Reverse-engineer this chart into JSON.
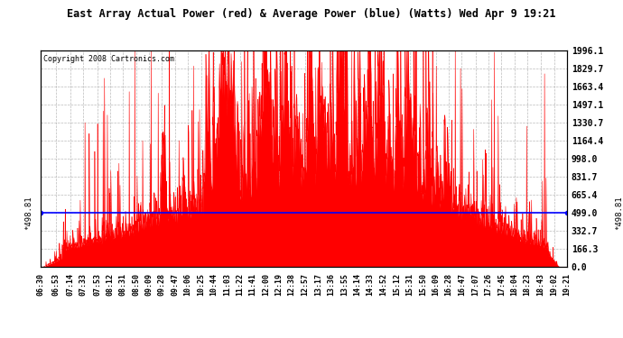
{
  "title": "East Array Actual Power (red) & Average Power (blue) (Watts) Wed Apr 9 19:21",
  "copyright": "Copyright 2008 Cartronics.com",
  "avg_power": 498.81,
  "ymax": 1996.1,
  "yticks": [
    0.0,
    166.3,
    332.7,
    499.0,
    665.4,
    831.7,
    998.0,
    1164.4,
    1330.7,
    1497.1,
    1663.4,
    1829.7,
    1996.1
  ],
  "bg_color": "#ffffff",
  "plot_bg_color": "#ffffff",
  "grid_color": "#aaaaaa",
  "red_color": "#ff0000",
  "blue_color": "#0000ff",
  "title_bg": "#cccccc",
  "xtick_labels": [
    "06:30",
    "06:53",
    "07:14",
    "07:33",
    "07:53",
    "08:12",
    "08:31",
    "08:50",
    "09:09",
    "09:28",
    "09:47",
    "10:06",
    "10:25",
    "10:44",
    "11:03",
    "11:22",
    "11:41",
    "12:00",
    "12:19",
    "12:38",
    "12:57",
    "13:17",
    "13:36",
    "13:55",
    "14:14",
    "14:33",
    "14:52",
    "15:12",
    "15:31",
    "15:50",
    "16:09",
    "16:28",
    "16:47",
    "17:07",
    "17:26",
    "17:45",
    "18:04",
    "18:23",
    "18:43",
    "19:02",
    "19:21"
  ]
}
